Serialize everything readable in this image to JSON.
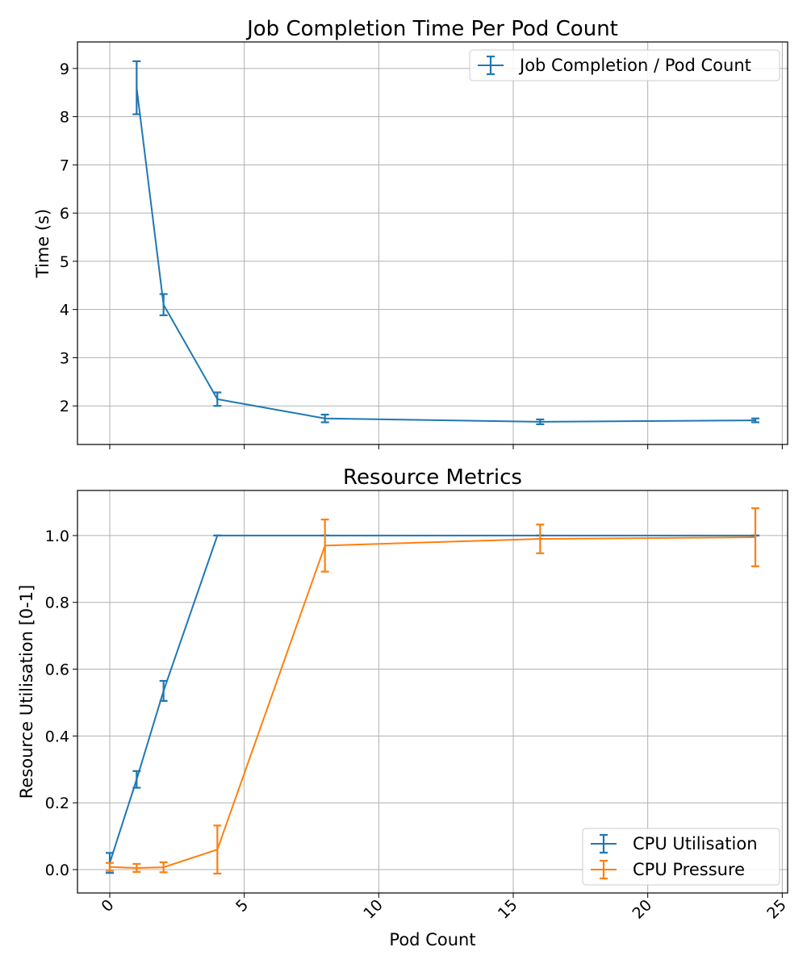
{
  "chart_data": [
    {
      "type": "line",
      "title": "Job Completion Time Per Pod Count",
      "xlabel": "",
      "ylabel": "Time (s)",
      "xlim": [
        -1.2,
        25.2
      ],
      "ylim": [
        1.2,
        9.55
      ],
      "xticks": [
        0,
        5,
        10,
        15,
        20,
        25
      ],
      "yticks": [
        2,
        3,
        4,
        5,
        6,
        7,
        8,
        9
      ],
      "grid": true,
      "legend": "top-right",
      "series": [
        {
          "name": "Job Completion / Pod Count",
          "color": "#1f77b4",
          "x": [
            1,
            2,
            4,
            8,
            16,
            24
          ],
          "y": [
            8.6,
            4.1,
            2.14,
            1.74,
            1.67,
            1.7
          ],
          "err": [
            0.55,
            0.22,
            0.14,
            0.08,
            0.05,
            0.04
          ]
        }
      ]
    },
    {
      "type": "line",
      "title": "Resource Metrics",
      "xlabel": "Pod Count",
      "ylabel": "Resource Utilisation [0-1]",
      "xlim": [
        -1.2,
        25.2
      ],
      "ylim": [
        -0.07,
        1.135
      ],
      "xticks": [
        0,
        5,
        10,
        15,
        20,
        25
      ],
      "yticks": [
        0.0,
        0.2,
        0.4,
        0.6,
        0.8,
        1.0
      ],
      "grid": true,
      "legend": "bottom-right",
      "series": [
        {
          "name": "CPU Utilisation",
          "color": "#1f77b4",
          "x": [
            0,
            1,
            2,
            4,
            8,
            16,
            24
          ],
          "y": [
            0.02,
            0.27,
            0.535,
            1.0,
            1.0,
            1.0,
            1.0
          ],
          "err": [
            0.03,
            0.025,
            0.03,
            0.0,
            0.0,
            0.0,
            0.0
          ]
        },
        {
          "name": "CPU Pressure",
          "color": "#ff7f0e",
          "x": [
            0,
            1,
            2,
            4,
            8,
            16,
            24
          ],
          "y": [
            0.008,
            0.005,
            0.007,
            0.06,
            0.97,
            0.99,
            0.995
          ],
          "err": [
            0.012,
            0.012,
            0.015,
            0.072,
            0.078,
            0.043,
            0.087
          ]
        }
      ]
    }
  ]
}
